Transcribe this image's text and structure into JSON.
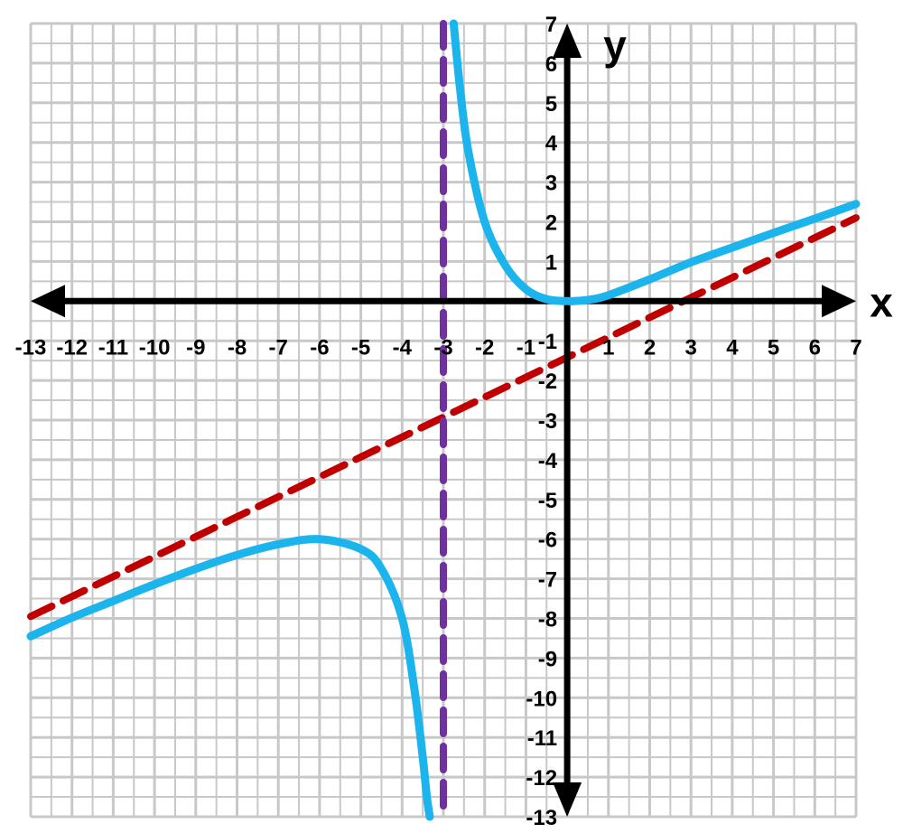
{
  "chart_data": {
    "type": "line",
    "xlabel": "x",
    "ylabel": "y",
    "xlim": [
      -13,
      7
    ],
    "ylim": [
      -13,
      7
    ],
    "x_ticks": [
      -13,
      -12,
      -11,
      -10,
      -9,
      -8,
      -7,
      -6,
      -5,
      -4,
      -3,
      -2,
      -1,
      1,
      2,
      3,
      4,
      5,
      6,
      7
    ],
    "y_ticks": [
      7,
      6,
      5,
      4,
      3,
      2,
      1,
      -1,
      -2,
      -3,
      -4,
      -5,
      -6,
      -7,
      -8,
      -9,
      -10,
      -11,
      -12,
      -13
    ],
    "grid": true,
    "series": [
      {
        "role": "function",
        "style": "solid",
        "color": "#1cb4ec",
        "branches": [
          {
            "x": [
              -13,
              -12,
              -11,
              -10,
              -9,
              -8,
              -7,
              -6,
              -5,
              -4.5,
              -4,
              -3.7,
              -3.5,
              -3.4,
              -3.33
            ],
            "y": [
              -8.45,
              -7.98,
              -7.56,
              -7.14,
              -6.75,
              -6.4,
              -6.13,
              -6,
              -6.25,
              -6.75,
              -8,
              -9.8,
              -11.5,
              -12.5,
              -13
            ]
          },
          {
            "x": [
              -2.75,
              -2.6,
              -2.4,
              -2,
              -1.5,
              -1,
              -0.5,
              0,
              0.5,
              1,
              2,
              3,
              4,
              5,
              6,
              7
            ],
            "y": [
              7,
              5.4,
              3.8,
              2,
              0.9,
              0.3,
              0.05,
              0,
              0.03,
              0.15,
              0.55,
              0.98,
              1.35,
              1.72,
              2.08,
              2.45
            ]
          }
        ]
      },
      {
        "role": "slant-asymptote",
        "style": "dashed",
        "color": "#c00000",
        "x": [
          -13,
          7
        ],
        "y": [
          -7.95,
          2.1
        ]
      },
      {
        "role": "vertical-asymptote",
        "style": "dashed",
        "color": "#7030a0",
        "x": [
          -3,
          -3
        ],
        "y": [
          7,
          -13
        ]
      }
    ]
  }
}
